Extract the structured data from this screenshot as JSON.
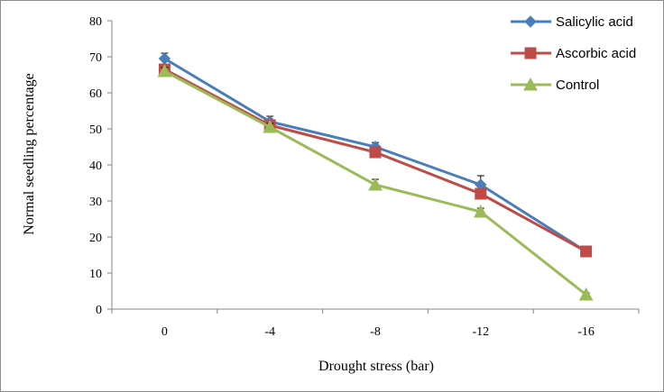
{
  "chart_data": {
    "type": "line",
    "title": "",
    "xlabel": "Drought stress (bar)",
    "ylabel": "Normal  seedling percentage",
    "categories": [
      "0",
      "-4",
      "-8",
      "-12",
      "-16"
    ],
    "ylim": [
      0,
      80
    ],
    "yticks": [
      "0",
      "10",
      "20",
      "30",
      "40",
      "50",
      "60",
      "70",
      "80"
    ],
    "grid": false,
    "legend_position": "top-right",
    "series": [
      {
        "name": "Salicylic acid",
        "marker": "diamond",
        "color": "#4a7ebb",
        "values": [
          69.5,
          52,
          45,
          34.5,
          16
        ],
        "errors": [
          1.5,
          1.5,
          1.2,
          2.5,
          0.8
        ]
      },
      {
        "name": "Ascorbic acid",
        "marker": "square",
        "color": "#be4b48",
        "values": [
          66.5,
          51,
          43.5,
          32,
          16
        ],
        "errors": [
          1.2,
          1.2,
          1.2,
          1.2,
          0.8
        ]
      },
      {
        "name": "Control",
        "marker": "triangle",
        "color": "#9bbb59",
        "values": [
          66,
          50.5,
          34.5,
          27,
          4
        ],
        "errors": [
          1.0,
          1.0,
          1.5,
          1.0,
          0.5
        ]
      }
    ]
  }
}
